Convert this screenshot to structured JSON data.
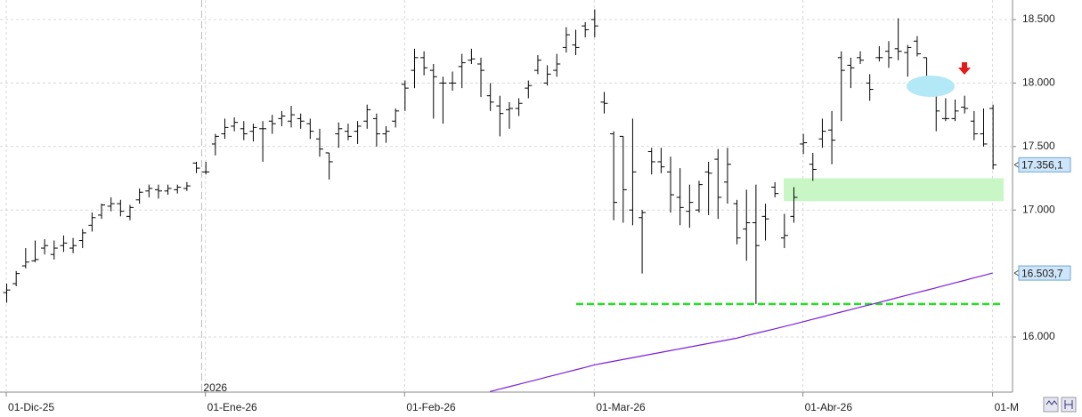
{
  "chart_data": {
    "type": "ohlc",
    "xlim": [
      -0.66,
      106.1
    ],
    "ylim": [
      15566,
      18654
    ],
    "yticks": [
      {
        "value": 16000,
        "label": "16.000"
      },
      {
        "value": 17000,
        "label": "17.000"
      },
      {
        "value": 17500,
        "label": "17.500"
      },
      {
        "value": 18000,
        "label": "18.000"
      },
      {
        "value": 18500,
        "label": "18.500"
      }
    ],
    "xticks": [
      {
        "value": 0,
        "label": "01-Dic-25"
      },
      {
        "value": 21,
        "label": "01-Ene-26"
      },
      {
        "value": 42,
        "label": "01-Feb-26"
      },
      {
        "value": 62,
        "label": "01-Mar-26"
      },
      {
        "value": 84,
        "label": "01-Abr-26"
      },
      {
        "value": 104,
        "label": "01-M"
      }
    ],
    "year_marker": {
      "value": 20.6,
      "label": "2026"
    },
    "grid": true,
    "bar_color": "#000000",
    "ohlc": [
      [
        16350,
        16420,
        16270,
        16370
      ],
      [
        16420,
        16520,
        16400,
        16500
      ],
      [
        16560,
        16700,
        16540,
        16590
      ],
      [
        16600,
        16760,
        16590,
        16610
      ],
      [
        16700,
        16770,
        16650,
        16720
      ],
      [
        16650,
        16760,
        16610,
        16700
      ],
      [
        16720,
        16800,
        16670,
        16740
      ],
      [
        16700,
        16780,
        16660,
        16720
      ],
      [
        16760,
        16850,
        16700,
        16820
      ],
      [
        16880,
        16980,
        16830,
        16940
      ],
      [
        16960,
        17050,
        16930,
        17040
      ],
      [
        17030,
        17100,
        16990,
        17050
      ],
      [
        17050,
        17080,
        16950,
        16990
      ],
      [
        16950,
        17040,
        16920,
        17020
      ],
      [
        17080,
        17170,
        17050,
        17140
      ],
      [
        17150,
        17200,
        17100,
        17170
      ],
      [
        17160,
        17200,
        17090,
        17150
      ],
      [
        17150,
        17200,
        17120,
        17170
      ],
      [
        17160,
        17200,
        17130,
        17180
      ],
      [
        17170,
        17220,
        17150,
        17190
      ],
      [
        17370,
        17380,
        17290,
        17330
      ],
      [
        17300,
        17380,
        17280,
        17300
      ],
      [
        17520,
        17600,
        17430,
        17580
      ],
      [
        17600,
        17720,
        17560,
        17650
      ],
      [
        17660,
        17730,
        17620,
        17690
      ],
      [
        17640,
        17700,
        17550,
        17600
      ],
      [
        17620,
        17680,
        17540,
        17650
      ],
      [
        17640,
        17700,
        17380,
        17640
      ],
      [
        17700,
        17750,
        17600,
        17680
      ],
      [
        17720,
        17780,
        17660,
        17740
      ],
      [
        17700,
        17820,
        17650,
        17750
      ],
      [
        17720,
        17760,
        17640,
        17700
      ],
      [
        17680,
        17720,
        17560,
        17620
      ],
      [
        17560,
        17640,
        17420,
        17480
      ],
      [
        17450,
        17450,
        17240,
        17380
      ],
      [
        17600,
        17690,
        17490,
        17640
      ],
      [
        17620,
        17680,
        17550,
        17580
      ],
      [
        17620,
        17700,
        17520,
        17660
      ],
      [
        17700,
        17830,
        17640,
        17790
      ],
      [
        17720,
        17760,
        17500,
        17600
      ],
      [
        17600,
        17660,
        17530,
        17620
      ],
      [
        17700,
        17800,
        17650,
        17780
      ],
      [
        17990,
        18020,
        17780,
        17960
      ],
      [
        18100,
        18270,
        17960,
        18200
      ],
      [
        18200,
        18250,
        18060,
        18120
      ],
      [
        18100,
        18150,
        17720,
        18050
      ],
      [
        18000,
        18050,
        17680,
        18000
      ],
      [
        18000,
        18090,
        17940,
        18000
      ],
      [
        18130,
        18230,
        17960,
        18160
      ],
      [
        18180,
        18270,
        18150,
        18190
      ],
      [
        18150,
        18200,
        17890,
        18100
      ],
      [
        17900,
        18000,
        17780,
        17850
      ],
      [
        17820,
        17900,
        17580,
        17760
      ],
      [
        17790,
        17850,
        17640,
        17800
      ],
      [
        17800,
        17880,
        17740,
        17840
      ],
      [
        17960,
        18020,
        17880,
        17980
      ],
      [
        18100,
        18220,
        18070,
        18180
      ],
      [
        18000,
        18140,
        17980,
        18070
      ],
      [
        18100,
        18230,
        18050,
        18150
      ],
      [
        18280,
        18440,
        18240,
        18380
      ],
      [
        18300,
        18420,
        18220,
        18280
      ],
      [
        18450,
        18480,
        18360,
        18420
      ],
      [
        18500,
        18580,
        18360,
        18450
      ],
      [
        17850,
        17930,
        17760,
        17840
      ],
      [
        17600,
        17620,
        16920,
        17060
      ],
      [
        17580,
        17580,
        16900,
        17160
      ],
      [
        17000,
        17720,
        16880,
        17300
      ],
      [
        16940,
        17000,
        16500,
        16980
      ],
      [
        17460,
        17490,
        17280,
        17380
      ],
      [
        17380,
        17490,
        17290,
        17340
      ],
      [
        17300,
        17420,
        16980,
        17120
      ],
      [
        17100,
        17330,
        16880,
        17020
      ],
      [
        16990,
        17200,
        16860,
        17060
      ],
      [
        17000,
        17230,
        16980,
        17200
      ],
      [
        17300,
        17380,
        16960,
        17290
      ],
      [
        17400,
        17480,
        16930,
        17100
      ],
      [
        17220,
        17490,
        17050,
        17360
      ],
      [
        17050,
        17080,
        16730,
        16780
      ],
      [
        16850,
        17160,
        16600,
        16900
      ],
      [
        16900,
        17200,
        16260,
        16720
      ],
      [
        16950,
        17050,
        16760,
        16930
      ],
      [
        17180,
        17220,
        17100,
        17130
      ],
      [
        16780,
        16970,
        16700,
        16800
      ],
      [
        16950,
        17180,
        16900,
        17100
      ],
      [
        17520,
        17600,
        17440,
        17530
      ],
      [
        17360,
        17450,
        17230,
        17320
      ],
      [
        17560,
        17720,
        17490,
        17620
      ],
      [
        17630,
        17780,
        17360,
        17550
      ],
      [
        18200,
        18250,
        17700,
        18100
      ],
      [
        18140,
        18200,
        17960,
        18120
      ],
      [
        18200,
        18250,
        18150,
        18180
      ],
      [
        18000,
        18070,
        17860,
        17950
      ],
      [
        18200,
        18290,
        18170,
        18200
      ],
      [
        18250,
        18330,
        18120,
        18200
      ],
      [
        18270,
        18510,
        18180,
        18250
      ],
      [
        18240,
        18300,
        18050,
        18280
      ],
      [
        18330,
        18370,
        18210,
        18230
      ],
      [
        18200,
        18200,
        17950,
        18000
      ],
      [
        17900,
        17950,
        17620,
        17780
      ],
      [
        17720,
        17880,
        17700,
        17720
      ],
      [
        17720,
        17870,
        17700,
        17780
      ],
      [
        17810,
        17900,
        17760,
        17800
      ],
      [
        17700,
        17780,
        17550,
        17600
      ],
      [
        17600,
        17800,
        17500,
        17520
      ],
      [
        17800,
        17830,
        17320,
        17356.1
      ]
    ],
    "close_label": "17.356,1",
    "ma": {
      "color": "#7b1fd6",
      "label": "16.503,7",
      "values": [
        null,
        null,
        null,
        null,
        null,
        null,
        null,
        null,
        null,
        null,
        null,
        null,
        null,
        null,
        null,
        null,
        null,
        null,
        null,
        null,
        null,
        null,
        null,
        null,
        null,
        null,
        null,
        null,
        null,
        null,
        null,
        null,
        null,
        null,
        null,
        null,
        null,
        null,
        null,
        null,
        null,
        null,
        null,
        null,
        null,
        null,
        null,
        null,
        null,
        null,
        null,
        15570,
        15589,
        15608,
        15627,
        15646,
        15665,
        15684,
        15703,
        15722,
        15741,
        15760,
        15780,
        15794,
        15808,
        15822,
        15836,
        15850,
        15864,
        15878,
        15892,
        15906,
        15920,
        15934,
        15948,
        15962,
        15976,
        15990,
        16010,
        16028,
        16046,
        16064,
        16082,
        16100,
        16120,
        16139,
        16158,
        16177,
        16196,
        16215,
        16234,
        16253,
        16272,
        16291,
        16310,
        16330,
        16349,
        16368,
        16387,
        16407,
        16426,
        16445,
        16465,
        16484,
        16503.7
      ]
    },
    "support": {
      "value": 16260,
      "color": "#22e022"
    },
    "zone": {
      "values": [
        17070,
        17250
      ],
      "color": "#c8f7c5"
    }
  }
}
